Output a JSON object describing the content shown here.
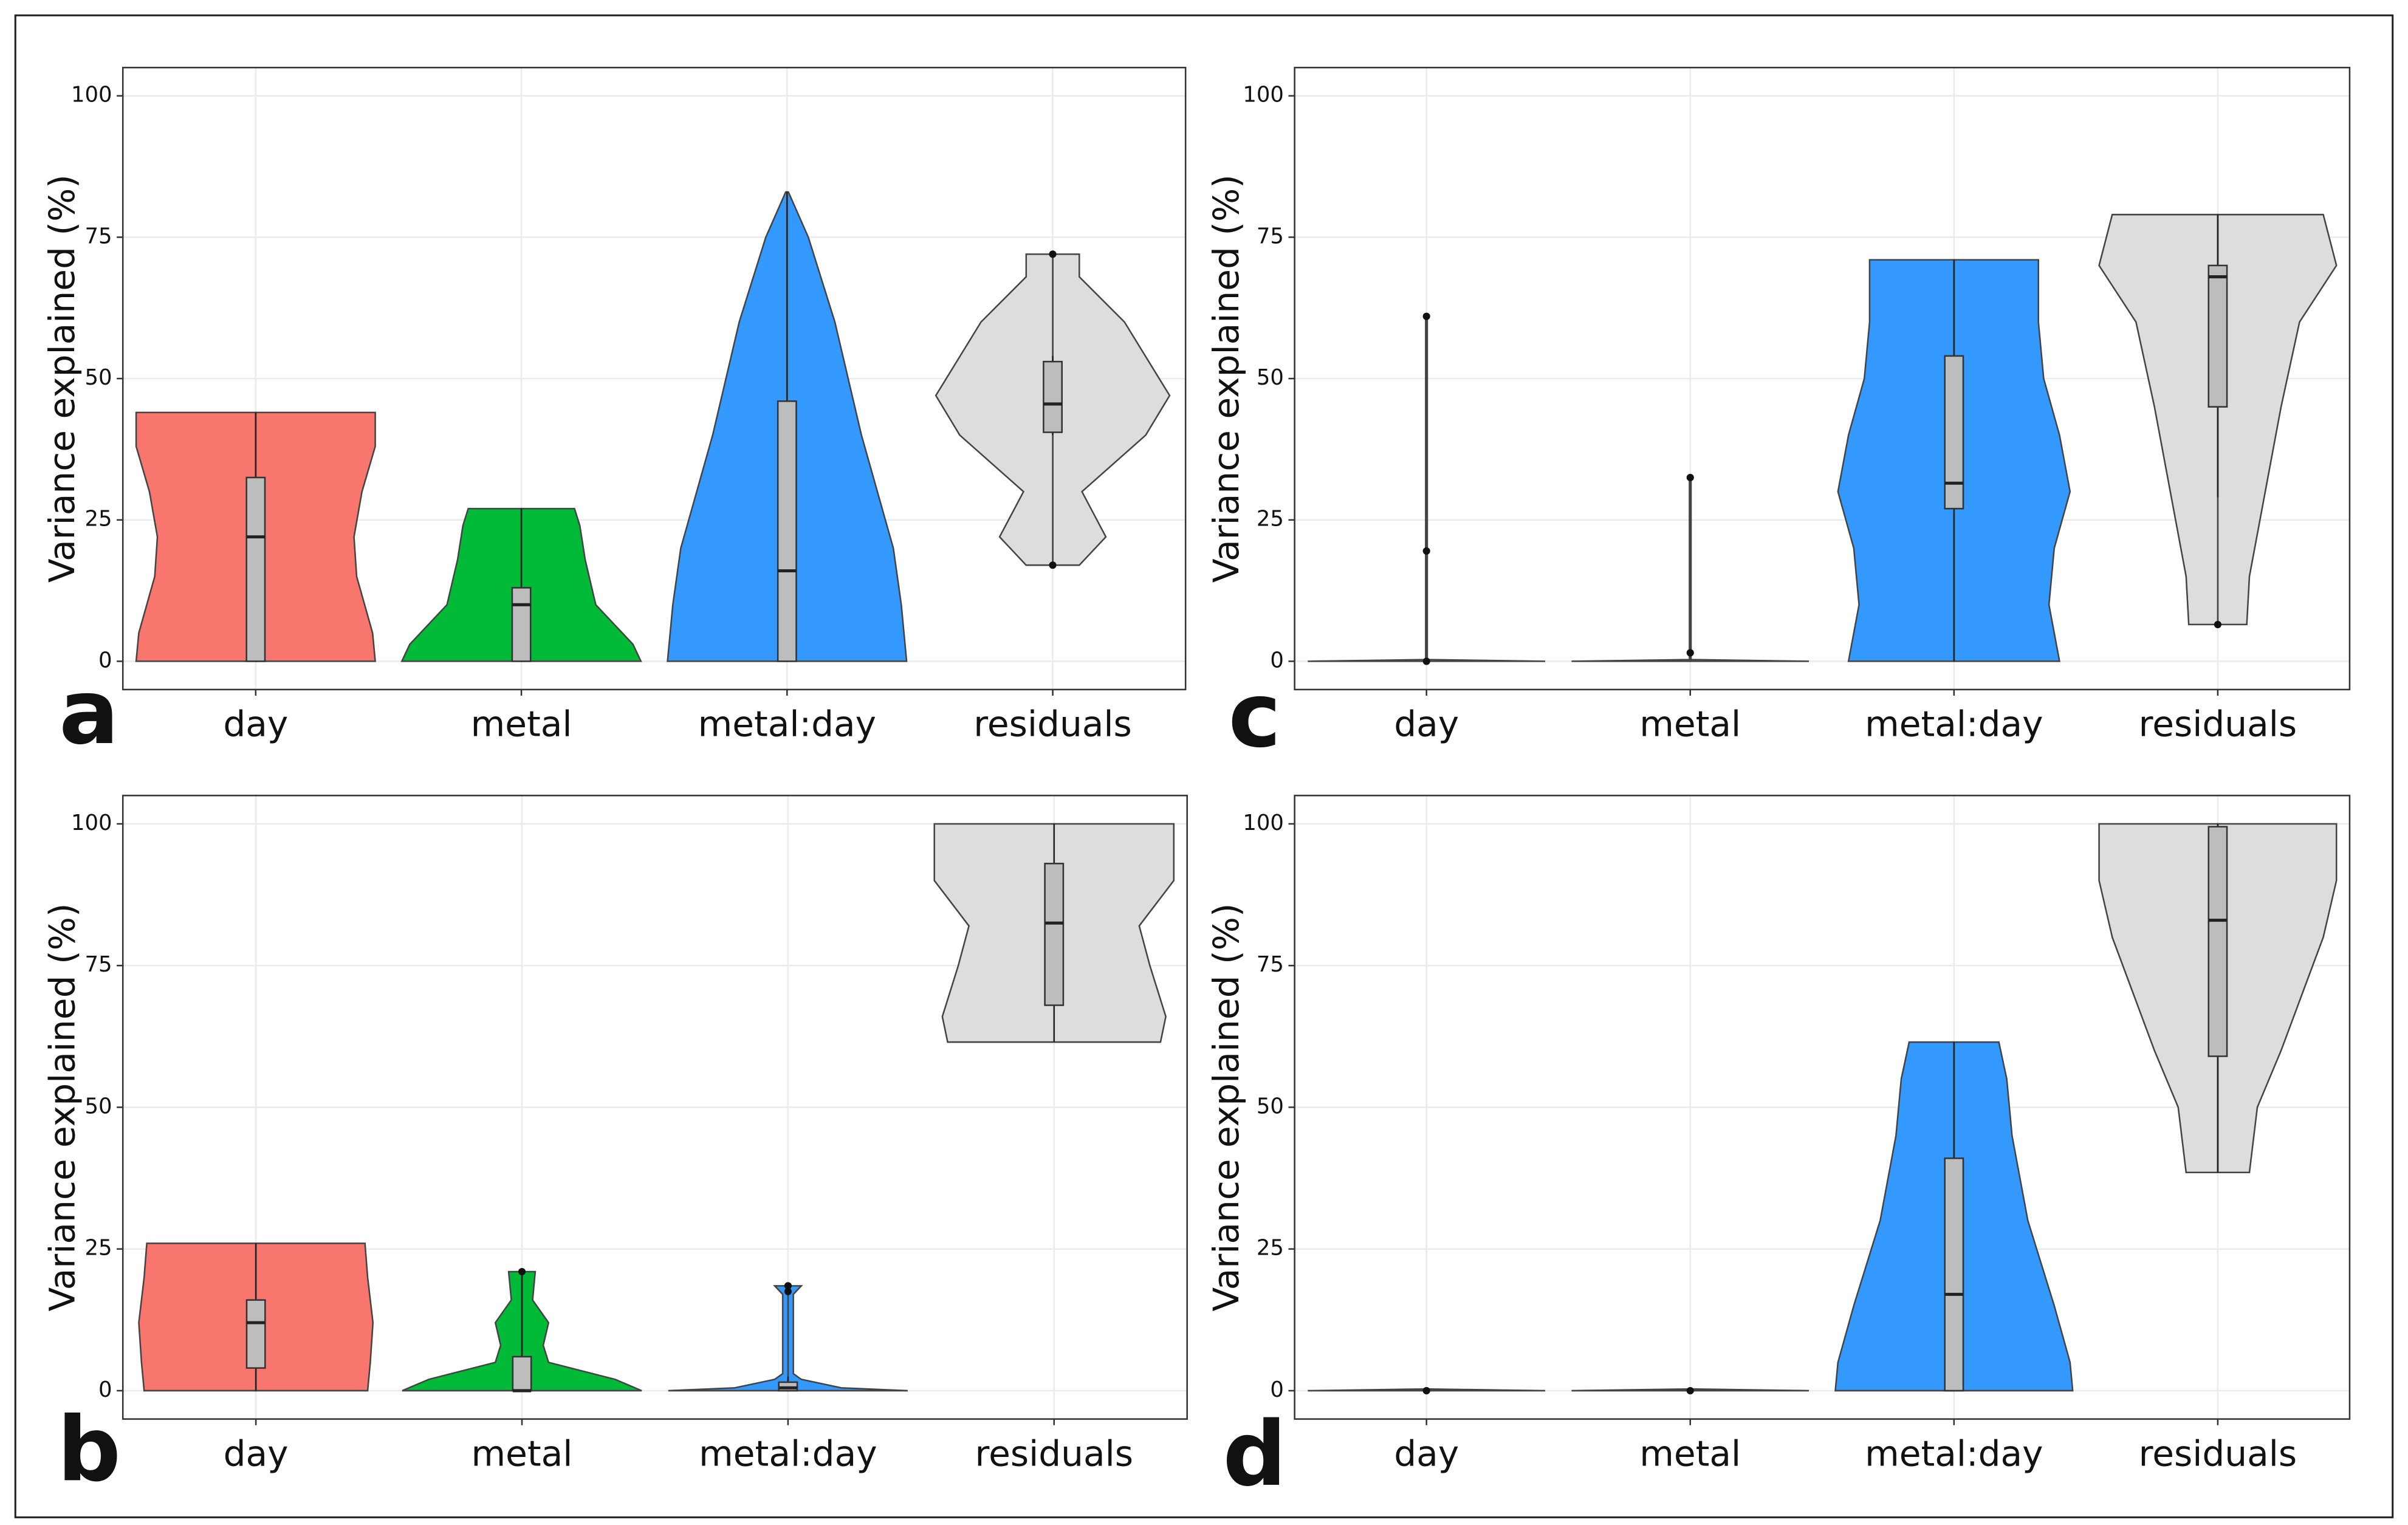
{
  "chart_data": [
    {
      "type": "violin",
      "panel_label": "a",
      "y_label": "Variance explained (%)",
      "categories": [
        "day",
        "metal",
        "metal:day",
        "residuals"
      ],
      "colors": [
        "#f8766d",
        "#00ba38",
        "#3399ff",
        "#dddddd"
      ],
      "violins": [
        {
          "y": [
            0,
            5,
            15,
            22,
            30,
            38,
            44
          ],
          "width": [
            0.45,
            0.44,
            0.38,
            0.37,
            0.4,
            0.45,
            0.45
          ]
        },
        {
          "y": [
            0,
            3,
            10,
            18,
            24,
            27
          ],
          "width": [
            0.45,
            0.42,
            0.28,
            0.24,
            0.22,
            0.2
          ]
        },
        {
          "y": [
            0,
            10,
            20,
            40,
            60,
            75,
            83
          ],
          "width": [
            0.45,
            0.43,
            0.4,
            0.28,
            0.18,
            0.08,
            0.005
          ]
        },
        {
          "y": [
            17,
            22,
            30,
            40,
            47,
            60,
            68,
            72
          ],
          "width": [
            0.1,
            0.2,
            0.11,
            0.35,
            0.44,
            0.27,
            0.1,
            0.1
          ]
        }
      ],
      "boxes": [
        {
          "min": 0,
          "q1": 0,
          "median": 22,
          "q3": 32.5,
          "max": 44
        },
        {
          "min": 0,
          "q1": 0,
          "median": 10,
          "q3": 13,
          "max": 27
        },
        {
          "min": 0,
          "q1": 0,
          "median": 16,
          "q3": 46,
          "max": 83
        },
        {
          "min": 40,
          "q1": 40.5,
          "median": 45.5,
          "q3": 53,
          "max": 54
        }
      ],
      "outliers": [
        [],
        [],
        [],
        [
          17,
          72
        ]
      ],
      "ylim": [
        -5,
        105
      ],
      "yticks": [
        0,
        25,
        50,
        75,
        100
      ],
      "grid": true
    },
    {
      "type": "violin",
      "panel_label": "b",
      "y_label": "Variance explained (%)",
      "categories": [
        "day",
        "metal",
        "metal:day",
        "residuals"
      ],
      "colors": [
        "#f8766d",
        "#00ba38",
        "#3399ff",
        "#dddddd"
      ],
      "violins": [
        {
          "y": [
            0,
            5,
            12,
            20,
            26
          ],
          "width": [
            0.42,
            0.43,
            0.44,
            0.42,
            0.41
          ]
        },
        {
          "y": [
            0,
            2,
            5,
            8,
            12,
            16,
            21
          ],
          "width": [
            0.45,
            0.35,
            0.1,
            0.08,
            0.1,
            0.04,
            0.05
          ]
        },
        {
          "y": [
            0,
            0.5,
            2,
            3,
            10,
            17,
            18.5
          ],
          "width": [
            0.45,
            0.2,
            0.05,
            0.02,
            0.02,
            0.02,
            0.05
          ]
        },
        {
          "y": [
            61.5,
            66,
            75,
            82,
            90,
            100
          ],
          "width": [
            0.4,
            0.42,
            0.36,
            0.32,
            0.45,
            0.45
          ]
        }
      ],
      "boxes": [
        {
          "min": 0,
          "q1": 4,
          "median": 12,
          "q3": 16,
          "max": 26
        },
        {
          "min": 0,
          "q1": 0,
          "median": 0,
          "q3": 6,
          "max": 21
        },
        {
          "min": 0,
          "q1": 0,
          "median": 0.5,
          "q3": 1.5,
          "max": 2.5
        },
        {
          "min": 61.5,
          "q1": 68,
          "median": 82.5,
          "q3": 93,
          "max": 100
        }
      ],
      "outliers": [
        [],
        [
          21
        ],
        [
          17.5,
          18.5
        ],
        []
      ],
      "ylim": [
        -5,
        105
      ],
      "yticks": [
        0,
        25,
        50,
        75,
        100
      ],
      "grid": true
    },
    {
      "type": "violin",
      "panel_label": "c",
      "y_label": "Variance explained (%)",
      "categories": [
        "day",
        "metal",
        "metal:day",
        "residuals"
      ],
      "colors": [
        "#f8766d",
        "#00ba38",
        "#3399ff",
        "#dddddd"
      ],
      "violins": [
        {
          "y": [
            0,
            0.3,
            61
          ],
          "width": [
            0.45,
            0.003,
            0.003
          ]
        },
        {
          "y": [
            0,
            0.3,
            32.5
          ],
          "width": [
            0.45,
            0.003,
            0.003
          ]
        },
        {
          "y": [
            0,
            10,
            20,
            30,
            40,
            50,
            60,
            71
          ],
          "width": [
            0.4,
            0.36,
            0.38,
            0.44,
            0.4,
            0.34,
            0.32,
            0.32
          ]
        },
        {
          "y": [
            6.5,
            15,
            30,
            45,
            60,
            70,
            79
          ],
          "width": [
            0.11,
            0.12,
            0.18,
            0.24,
            0.31,
            0.45,
            0.4
          ]
        }
      ],
      "boxes": [
        null,
        null,
        {
          "min": 0,
          "q1": 27,
          "median": 31.5,
          "q3": 54,
          "max": 71
        },
        {
          "min": 29,
          "q1": 45,
          "median": 68,
          "q3": 70,
          "max": 79
        }
      ],
      "outliers": [
        [
          0,
          19.5,
          61
        ],
        [
          1.5,
          32.5
        ],
        [],
        [
          6.5
        ]
      ],
      "ylim": [
        -5,
        105
      ],
      "yticks": [
        0,
        25,
        50,
        75,
        100
      ],
      "grid": true
    },
    {
      "type": "violin",
      "panel_label": "d",
      "y_label": "Variance explained (%)",
      "categories": [
        "day",
        "metal",
        "metal:day",
        "residuals"
      ],
      "colors": [
        "#f8766d",
        "#00ba38",
        "#3399ff",
        "#dddddd"
      ],
      "violins": [
        {
          "y": [
            0,
            0.3
          ],
          "width": [
            0.45,
            0.003
          ]
        },
        {
          "y": [
            0,
            0.3
          ],
          "width": [
            0.45,
            0.003
          ]
        },
        {
          "y": [
            0,
            5,
            15,
            30,
            45,
            55,
            61.5
          ],
          "width": [
            0.45,
            0.44,
            0.38,
            0.28,
            0.22,
            0.2,
            0.17
          ]
        },
        {
          "y": [
            38.5,
            50,
            60,
            70,
            80,
            90,
            100
          ],
          "width": [
            0.12,
            0.15,
            0.24,
            0.32,
            0.4,
            0.45,
            0.45
          ]
        }
      ],
      "boxes": [
        null,
        null,
        {
          "min": 0,
          "q1": 0,
          "median": 17,
          "q3": 41,
          "max": 61.5
        },
        {
          "min": 38.5,
          "q1": 59,
          "median": 83,
          "q3": 99.5,
          "max": 100
        }
      ],
      "outliers": [
        [
          0
        ],
        [
          0
        ],
        [],
        []
      ],
      "ylim": [
        -5,
        105
      ],
      "yticks": [
        0,
        25,
        50,
        75,
        100
      ],
      "grid": true
    }
  ]
}
